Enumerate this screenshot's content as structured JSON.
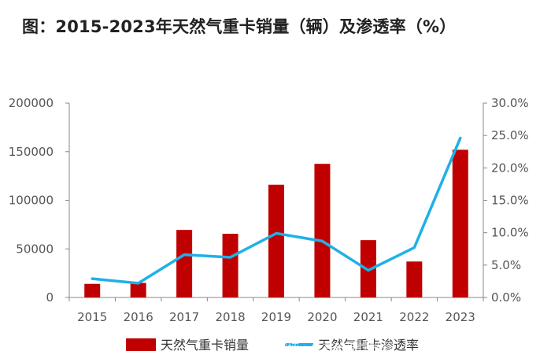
{
  "title": "图：2015-2023年天然气重卡销量（辆）及渗透率（%）",
  "watermark": "雪球 · 可君的理性投资",
  "colors": {
    "bar": "#C00000",
    "line": "#1FB0E8",
    "axis": "#888888"
  },
  "chart_data": {
    "type": "bar+line",
    "categories": [
      "2015",
      "2016",
      "2017",
      "2018",
      "2019",
      "2020",
      "2021",
      "2022",
      "2023"
    ],
    "series": [
      {
        "name": "天然气重卡销量",
        "type": "bar",
        "axis": "left",
        "values": [
          14000,
          15000,
          69500,
          65500,
          116000,
          137500,
          59000,
          37000,
          152000
        ]
      },
      {
        "name": "天然气重卡渗透率",
        "type": "line",
        "axis": "right",
        "values": [
          0.029,
          0.022,
          0.066,
          0.062,
          0.099,
          0.087,
          0.042,
          0.077,
          0.246
        ]
      }
    ],
    "y_left": {
      "min": 0,
      "max": 200000,
      "ticks": [
        "0",
        "50000",
        "100000",
        "150000",
        "200000"
      ]
    },
    "y_right": {
      "min": 0,
      "max": 0.3,
      "ticks": [
        "0.0%",
        "5.0%",
        "10.0%",
        "15.0%",
        "20.0%",
        "25.0%",
        "30.0%"
      ]
    },
    "grid": false,
    "legend_position": "bottom"
  }
}
